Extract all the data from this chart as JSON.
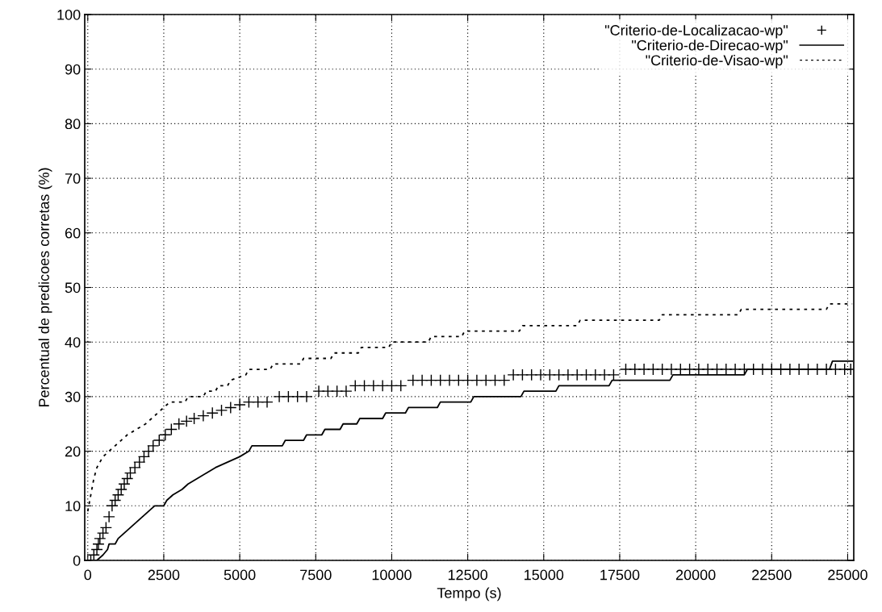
{
  "chart_data": {
    "type": "line",
    "xlabel": "Tempo (s)",
    "ylabel": "Percentual de predicoes corretas (%)",
    "xlim": [
      -100,
      25200
    ],
    "ylim": [
      0,
      100
    ],
    "xticks": [
      0,
      2500,
      5000,
      7500,
      10000,
      12500,
      15000,
      17500,
      20000,
      22500,
      25000
    ],
    "yticks": [
      0,
      10,
      20,
      30,
      40,
      50,
      60,
      70,
      80,
      90,
      100
    ],
    "grid": true,
    "legend": "top right",
    "series": [
      {
        "name": "\"Criterio-de-Localizacao-wp\"",
        "type": "scatter",
        "marker": "cross",
        "color": "#000000",
        "x": [
          100,
          200,
          300,
          350,
          400,
          500,
          600,
          700,
          800,
          900,
          1000,
          1100,
          1200,
          1300,
          1400,
          1550,
          1700,
          1850,
          2000,
          2150,
          2350,
          2550,
          2750,
          3000,
          3250,
          3500,
          3800,
          4100,
          4400,
          4700,
          5000,
          5300,
          5600,
          5900,
          6300,
          6600,
          6900,
          7200,
          7600,
          7900,
          8200,
          8500,
          8800,
          9100,
          9400,
          9700,
          10000,
          10300,
          10700,
          11000,
          11300,
          11600,
          11900,
          12200,
          12500,
          12800,
          13100,
          13400,
          13700,
          14000,
          14300,
          14600,
          14900,
          15200,
          15500,
          15800,
          16100,
          16400,
          16700,
          17000,
          17300,
          17700,
          18000,
          18300,
          18600,
          18900,
          19200,
          19500,
          19800,
          20100,
          20400,
          20700,
          21000,
          21300,
          21600,
          21900,
          22200,
          22500,
          22800,
          23100,
          23400,
          23700,
          24000,
          24300,
          24600,
          24900,
          25100
        ],
        "values": [
          0,
          1,
          2,
          3,
          4,
          5,
          6,
          8,
          10,
          11,
          12,
          13,
          14,
          15,
          16,
          17,
          18,
          19,
          20,
          21,
          22,
          23,
          24,
          25,
          25.5,
          26,
          26.5,
          27,
          27.5,
          28,
          28.5,
          29,
          29,
          29,
          30,
          30,
          30,
          30,
          31,
          31,
          31,
          31,
          32,
          32,
          32,
          32,
          32,
          32,
          33,
          33,
          33,
          33,
          33,
          33,
          33,
          33,
          33,
          33,
          33,
          34,
          34,
          34,
          34,
          34,
          34,
          34,
          34,
          34,
          34,
          34,
          34,
          35,
          35,
          35,
          35,
          35,
          35,
          35,
          35,
          35,
          35,
          35,
          35,
          35,
          35,
          35,
          35,
          35,
          35,
          35,
          35,
          35,
          35,
          35,
          35,
          35,
          35
        ]
      },
      {
        "name": "\"Criterio-de-Direcao-wp\"",
        "line_style": "solid",
        "color": "#000000",
        "x": [
          300,
          500,
          650,
          700,
          900,
          1000,
          1200,
          1400,
          1600,
          1800,
          2000,
          2200,
          2500,
          2600,
          2800,
          3100,
          3300,
          3600,
          3900,
          4200,
          4600,
          5000,
          5300,
          5400,
          6400,
          6500,
          7100,
          7200,
          7700,
          7800,
          8300,
          8400,
          8850,
          8950,
          9700,
          9800,
          10450,
          10550,
          11500,
          11600,
          12600,
          12700,
          14250,
          14350,
          15400,
          15500,
          17150,
          17250,
          19150,
          19250,
          21600,
          21700,
          24400,
          24500,
          25150
        ],
        "values": [
          0,
          1,
          2,
          3,
          3,
          4,
          5,
          6,
          7,
          8,
          9,
          10,
          10,
          11,
          12,
          13,
          14,
          15,
          16,
          17,
          18,
          19,
          20,
          21,
          21,
          22,
          22,
          23,
          23,
          24,
          24,
          25,
          25,
          26,
          26,
          27,
          27,
          28,
          28,
          29,
          29,
          30,
          30,
          31,
          31,
          32,
          32,
          33,
          33,
          34,
          34,
          35,
          35,
          36.5,
          36.5
        ]
      },
      {
        "name": "\"Criterio-de-Visao-wp\"",
        "line_style": "dotted",
        "color": "#000000",
        "x": [
          0,
          100,
          200,
          300,
          400,
          500,
          700,
          900,
          1100,
          1300,
          1600,
          1900,
          2100,
          2300,
          2500,
          2700,
          3200,
          3300,
          3800,
          3900,
          4200,
          4300,
          4600,
          4700,
          5200,
          5300,
          6000,
          6100,
          7000,
          7100,
          8000,
          8100,
          8900,
          9000,
          9900,
          10000,
          11200,
          11300,
          12300,
          12400,
          14200,
          14300,
          16100,
          16200,
          18800,
          18900,
          21400,
          21500,
          24300,
          24400,
          25150
        ],
        "values": [
          9,
          12,
          15,
          17,
          18,
          19,
          20,
          21,
          22,
          23,
          24,
          25,
          26,
          27,
          28,
          29,
          29,
          30,
          30,
          31,
          31,
          32,
          32,
          33,
          34,
          35,
          35,
          36,
          36,
          37,
          37,
          38,
          38,
          39,
          39,
          40,
          40,
          41,
          41,
          42,
          42,
          43,
          43,
          44,
          44,
          45,
          45,
          46,
          46,
          47,
          47
        ]
      }
    ]
  }
}
